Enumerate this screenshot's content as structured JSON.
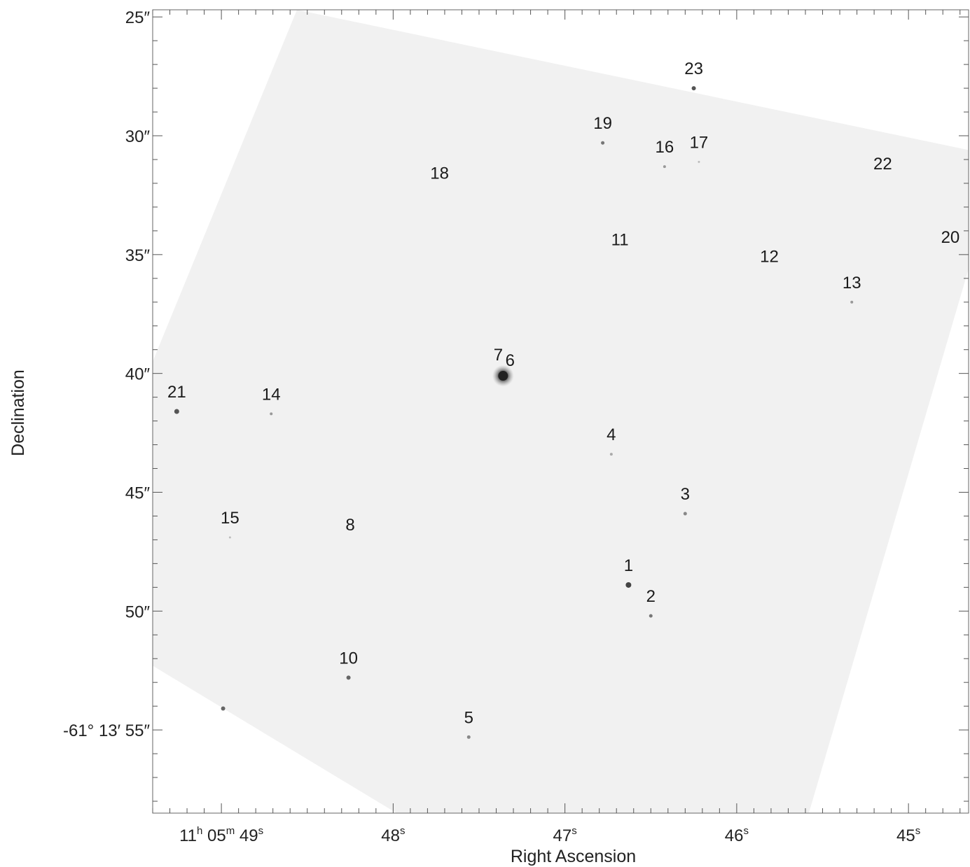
{
  "chart_data": {
    "type": "scatter",
    "title": "",
    "xlabel": "Right Ascension",
    "ylabel": "Declination",
    "x_units": "RA seconds of time (11h 05m + value)",
    "y_units": "Dec arcseconds (-61° 13′ + value)",
    "xlim": [
      49.4,
      44.65
    ],
    "ylim": [
      58.5,
      24.7
    ],
    "x_ticks": [
      {
        "value": 49,
        "label_parts": [
          {
            "t": "11",
            "sup": false
          },
          {
            "t": "h",
            "sup": true
          },
          {
            "t": " 05",
            "sup": false
          },
          {
            "t": "m",
            "sup": true
          },
          {
            "t": " 49",
            "sup": false
          },
          {
            "t": "s",
            "sup": true
          }
        ]
      },
      {
        "value": 48,
        "label_parts": [
          {
            "t": "48",
            "sup": false
          },
          {
            "t": "s",
            "sup": true
          }
        ]
      },
      {
        "value": 47,
        "label_parts": [
          {
            "t": "47",
            "sup": false
          },
          {
            "t": "s",
            "sup": true
          }
        ]
      },
      {
        "value": 46,
        "label_parts": [
          {
            "t": "46",
            "sup": false
          },
          {
            "t": "s",
            "sup": true
          }
        ]
      },
      {
        "value": 45,
        "label_parts": [
          {
            "t": "45",
            "sup": false
          },
          {
            "t": "s",
            "sup": true
          }
        ]
      }
    ],
    "y_ticks": [
      {
        "value": 25,
        "label": "25″"
      },
      {
        "value": 30,
        "label": "30″"
      },
      {
        "value": 35,
        "label": "35″"
      },
      {
        "value": 40,
        "label": "40″"
      },
      {
        "value": 45,
        "label": "45″"
      },
      {
        "value": 50,
        "label": "50″"
      },
      {
        "value": 55,
        "label": "-61° 13′ 55″"
      }
    ],
    "x_minor_step": 0.1,
    "y_minor_step": 1,
    "footprint_polygon": [
      [
        48.56,
        24.7
      ],
      [
        44.65,
        30.6
      ],
      [
        44.65,
        35.6
      ],
      [
        45.58,
        58.5
      ],
      [
        47.98,
        58.5
      ],
      [
        49.4,
        52.3
      ],
      [
        49.4,
        39.5
      ]
    ],
    "footprint_color": "#f1f1f1",
    "points": [
      {
        "id": "1",
        "ra": 46.63,
        "dec": 48.9,
        "mag_size": 4,
        "shade": "#444444",
        "label": "1"
      },
      {
        "id": "2",
        "ra": 46.5,
        "dec": 50.2,
        "mag_size": 2.5,
        "shade": "#777777",
        "label": "2"
      },
      {
        "id": "3",
        "ra": 46.3,
        "dec": 45.9,
        "mag_size": 2.5,
        "shade": "#888888",
        "label": "3"
      },
      {
        "id": "4",
        "ra": 46.73,
        "dec": 43.4,
        "mag_size": 2,
        "shade": "#aaaaaa",
        "label": "4"
      },
      {
        "id": "5",
        "ra": 47.56,
        "dec": 55.3,
        "mag_size": 2.5,
        "shade": "#888888",
        "label": "5"
      },
      {
        "id": "6",
        "ra": 47.36,
        "dec": 40.1,
        "mag_size": 7,
        "shade": "#222222",
        "label": "6"
      },
      {
        "id": "7",
        "ra": 47.38,
        "dec": 40.1,
        "mag_size": 0,
        "shade": "#222222",
        "label": "7"
      },
      {
        "id": "8",
        "ra": 48.25,
        "dec": 47.2,
        "mag_size": 0,
        "shade": "#cccccc",
        "label": "8"
      },
      {
        "id": "10",
        "ra": 48.26,
        "dec": 52.8,
        "mag_size": 3,
        "shade": "#666666",
        "label": "10"
      },
      {
        "id": "11",
        "ra": 46.68,
        "dec": 35.2,
        "mag_size": 0,
        "shade": "#dddddd",
        "label": "11"
      },
      {
        "id": "12",
        "ra": 45.81,
        "dec": 35.9,
        "mag_size": 0,
        "shade": "#dddddd",
        "label": "12"
      },
      {
        "id": "13",
        "ra": 45.33,
        "dec": 37.0,
        "mag_size": 2,
        "shade": "#999999",
        "label": "13"
      },
      {
        "id": "14",
        "ra": 48.71,
        "dec": 41.7,
        "mag_size": 2,
        "shade": "#999999",
        "label": "14"
      },
      {
        "id": "15",
        "ra": 48.95,
        "dec": 46.9,
        "mag_size": 1.5,
        "shade": "#bbbbbb",
        "label": "15"
      },
      {
        "id": "16",
        "ra": 46.42,
        "dec": 31.3,
        "mag_size": 2,
        "shade": "#999999",
        "label": "16"
      },
      {
        "id": "17",
        "ra": 46.22,
        "dec": 31.1,
        "mag_size": 1.5,
        "shade": "#bbbbbb",
        "label": "17"
      },
      {
        "id": "18",
        "ra": 47.73,
        "dec": 32.4,
        "mag_size": 0,
        "shade": "#dddddd",
        "label": "18"
      },
      {
        "id": "19",
        "ra": 46.78,
        "dec": 30.3,
        "mag_size": 2.5,
        "shade": "#777777",
        "label": "19"
      },
      {
        "id": "20",
        "ra": 44.74,
        "dec": 35.0,
        "mag_size": 0,
        "shade": "#dddddd",
        "label": "20"
      },
      {
        "id": "21",
        "ra": 49.26,
        "dec": 41.6,
        "mag_size": 3.5,
        "shade": "#555555",
        "label": "21"
      },
      {
        "id": "22",
        "ra": 45.15,
        "dec": 32.0,
        "mag_size": 0,
        "shade": "#dddddd",
        "label": "22"
      },
      {
        "id": "23",
        "ra": 46.25,
        "dec": 28.0,
        "mag_size": 3,
        "shade": "#555555",
        "label": "23"
      },
      {
        "id": "u1",
        "ra": 48.99,
        "dec": 54.1,
        "mag_size": 3,
        "shade": "#666666",
        "label": ""
      }
    ],
    "grid": false,
    "legend": "none"
  }
}
